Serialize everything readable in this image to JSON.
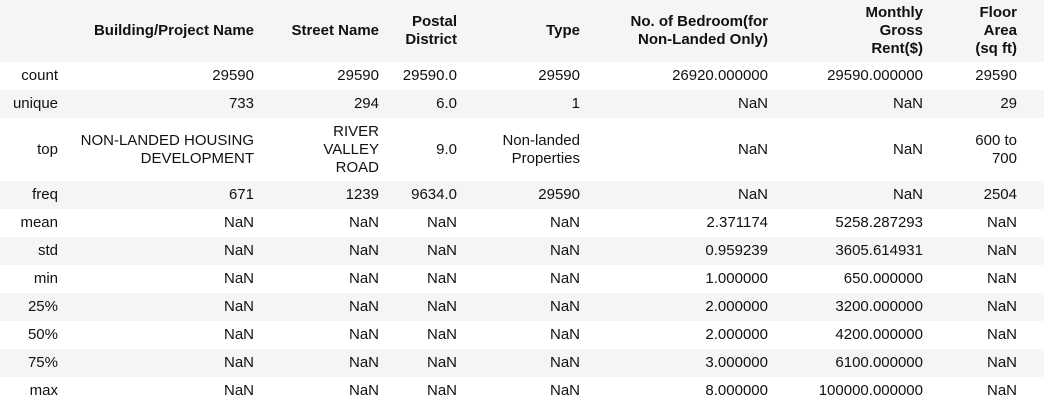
{
  "table": {
    "index_header": "",
    "columns": [
      "Building/Project Name",
      "Street Name",
      "Postal District",
      "Type",
      "No. of Bedroom(for Non-Landed Only)",
      "Monthly Gross Rent($)",
      "Floor Area (sq ft)"
    ],
    "rows": [
      {
        "label": "count",
        "cells": [
          "29590",
          "29590",
          "29590.0",
          "29590",
          "26920.000000",
          "29590.000000",
          "29590"
        ]
      },
      {
        "label": "unique",
        "cells": [
          "733",
          "294",
          "6.0",
          "1",
          "NaN",
          "NaN",
          "29"
        ]
      },
      {
        "label": "top",
        "cells": [
          "NON-LANDED HOUSING DEVELOPMENT",
          "RIVER VALLEY ROAD",
          "9.0",
          "Non-landed Properties",
          "NaN",
          "NaN",
          "600 to 700"
        ]
      },
      {
        "label": "freq",
        "cells": [
          "671",
          "1239",
          "9634.0",
          "29590",
          "NaN",
          "NaN",
          "2504"
        ]
      },
      {
        "label": "mean",
        "cells": [
          "NaN",
          "NaN",
          "NaN",
          "NaN",
          "2.371174",
          "5258.287293",
          "NaN"
        ]
      },
      {
        "label": "std",
        "cells": [
          "NaN",
          "NaN",
          "NaN",
          "NaN",
          "0.959239",
          "3605.614931",
          "NaN"
        ]
      },
      {
        "label": "min",
        "cells": [
          "NaN",
          "NaN",
          "NaN",
          "NaN",
          "1.000000",
          "650.000000",
          "NaN"
        ]
      },
      {
        "label": "25%",
        "cells": [
          "NaN",
          "NaN",
          "NaN",
          "NaN",
          "2.000000",
          "3200.000000",
          "NaN"
        ]
      },
      {
        "label": "50%",
        "cells": [
          "NaN",
          "NaN",
          "NaN",
          "NaN",
          "2.000000",
          "4200.000000",
          "NaN"
        ]
      },
      {
        "label": "75%",
        "cells": [
          "NaN",
          "NaN",
          "NaN",
          "NaN",
          "3.000000",
          "6100.000000",
          "NaN"
        ]
      },
      {
        "label": "max",
        "cells": [
          "NaN",
          "NaN",
          "NaN",
          "NaN",
          "8.000000",
          "100000.000000",
          "NaN"
        ]
      }
    ]
  }
}
